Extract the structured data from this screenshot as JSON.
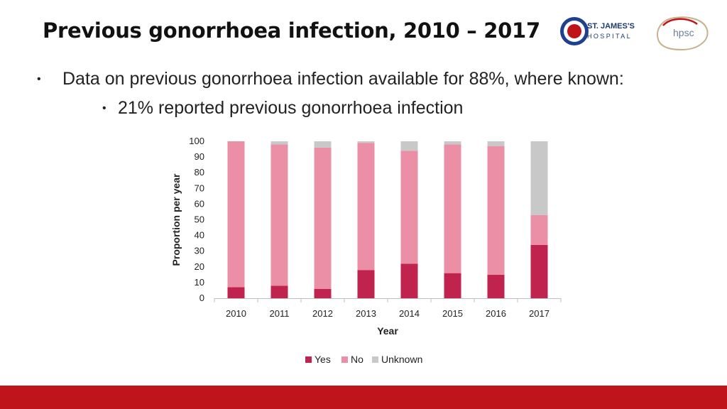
{
  "slide": {
    "title": "Previous gonorrhoea infection, 2010 – 2017",
    "bullet_glyph": "•",
    "bullet1": "Data on previous gonorrhoea infection available for 88%, where known:",
    "bullet2": "21% reported previous gonorrhoea infection"
  },
  "logos": {
    "sjh_line1": "ST. JAMES'S",
    "sjh_line2": "HOSPITAL",
    "hpsc": "hpsc"
  },
  "colors": {
    "yes": "#c0234e",
    "no": "#ea8fa6",
    "unknown": "#c8c8c8",
    "footer": "#c0141b"
  },
  "chart_data": {
    "type": "bar",
    "stacked": true,
    "categories": [
      "2010",
      "2011",
      "2012",
      "2013",
      "2014",
      "2015",
      "2016",
      "2017"
    ],
    "series": [
      {
        "name": "Yes",
        "values": [
          7,
          8,
          6,
          18,
          22,
          16,
          15,
          34
        ]
      },
      {
        "name": "No",
        "values": [
          93,
          90,
          90,
          81,
          72,
          82,
          82,
          19
        ]
      },
      {
        "name": "Unknown",
        "values": [
          0,
          2,
          4,
          1,
          6,
          2,
          3,
          47
        ]
      }
    ],
    "xlabel": "Year",
    "ylabel": "Proportion per year",
    "ylim": [
      0,
      100
    ],
    "yticks": [
      0,
      10,
      20,
      30,
      40,
      50,
      60,
      70,
      80,
      90,
      100
    ],
    "grid": false,
    "legend_position": "bottom"
  }
}
